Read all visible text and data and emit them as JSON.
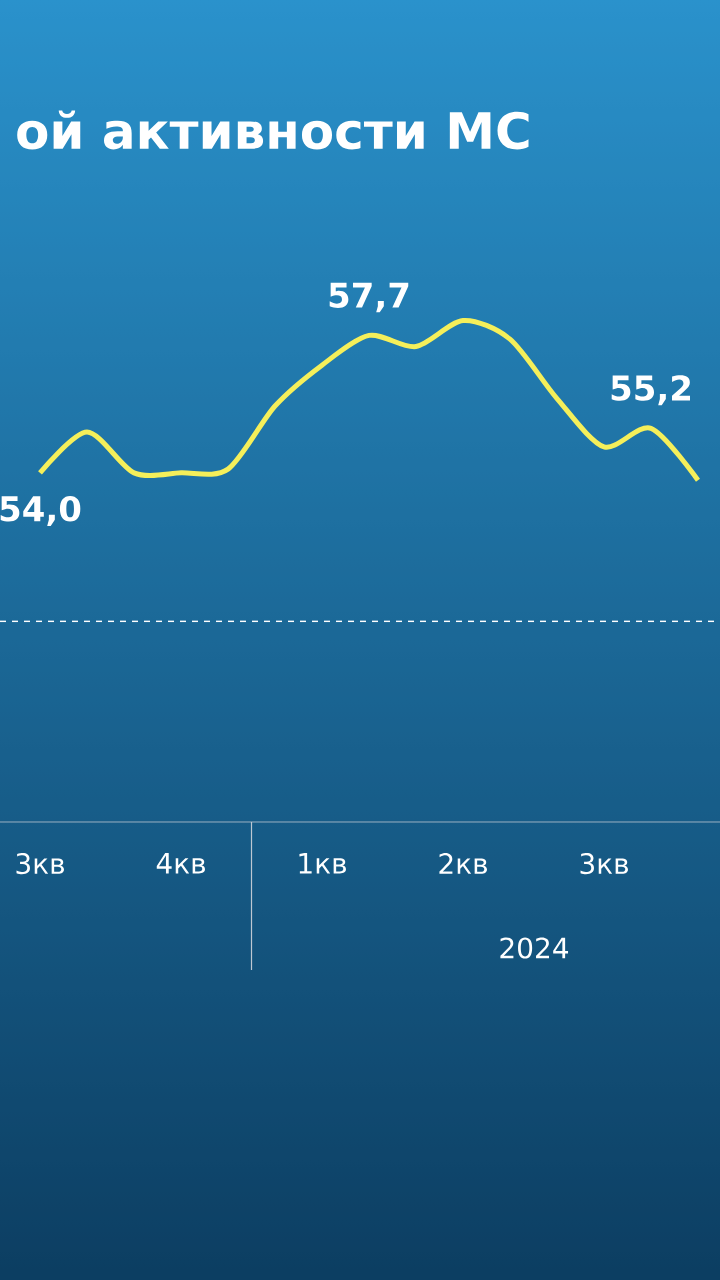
{
  "chart_data": {
    "type": "line",
    "title": "ой активности МС",
    "categories": [
      "3кв",
      null,
      null,
      "4кв",
      null,
      null,
      "1кв",
      null,
      null,
      "2кв",
      null,
      null,
      "3кв",
      null,
      null
    ],
    "values": [
      54.0,
      55.1,
      54.0,
      54.0,
      54.1,
      55.8,
      56.9,
      57.7,
      57.4,
      58.1,
      57.6,
      56.0,
      54.7,
      55.2,
      53.8
    ],
    "value_labels": [
      "54,0",
      null,
      null,
      null,
      null,
      null,
      null,
      "57,7",
      null,
      null,
      null,
      null,
      null,
      "55,2",
      null
    ],
    "color": "#f5ef5a",
    "marker": "none",
    "ref_lines": [
      {
        "axis": "y",
        "value": 50,
        "color": "#ffffff",
        "line_style": "dashed"
      }
    ],
    "annotations": [
      "2024"
    ]
  }
}
